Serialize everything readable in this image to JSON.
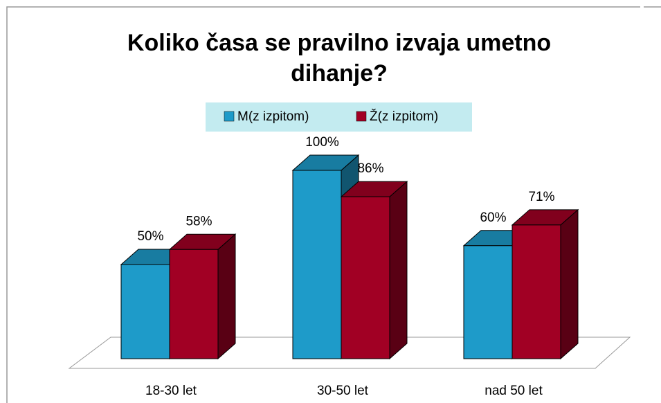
{
  "chart_data": {
    "type": "bar3d",
    "title": "Koliko časa se pravilno izvaja umetno dihanje?",
    "categories": [
      "18-30 let",
      "30-50 let",
      "nad 50 let"
    ],
    "series": [
      {
        "name": "M(z izpitom)",
        "color": "#1e9bc9",
        "values": [
          50,
          100,
          60
        ],
        "value_labels": [
          "50%",
          "100%",
          "60%"
        ]
      },
      {
        "name": "Ž(z izpitom)",
        "color": "#a10024",
        "values": [
          58,
          86,
          71
        ],
        "value_labels": [
          "58%",
          "86%",
          "71%"
        ]
      }
    ],
    "ylim": [
      0,
      100
    ],
    "legend": "top"
  }
}
